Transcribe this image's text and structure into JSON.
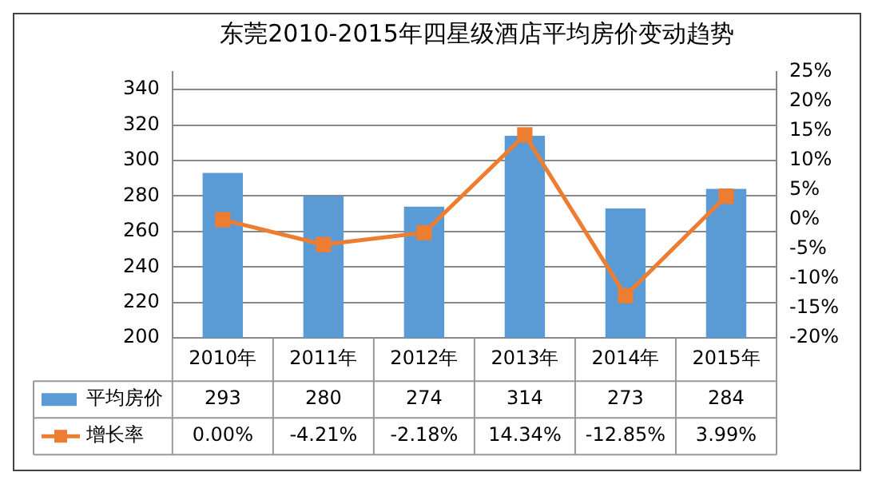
{
  "chart_data": {
    "type": "bar",
    "title": "东莞2010-2015年四星级酒店平均房价变动趋势",
    "categories": [
      "2010年",
      "2011年",
      "2012年",
      "2013年",
      "2014年",
      "2015年"
    ],
    "series": [
      {
        "name": "平均房价",
        "color": "#5b9bd5",
        "values": [
          293,
          280,
          274,
          314,
          273,
          284
        ],
        "value_labels": [
          "293",
          "280",
          "274",
          "314",
          "273",
          "284"
        ]
      },
      {
        "name": "增长率",
        "type": "line",
        "axis": "y2",
        "color": "#ed7d31",
        "values": [
          0.0,
          -4.21,
          -2.18,
          14.34,
          -12.85,
          3.99
        ],
        "value_labels": [
          "0.00%",
          "-4.21%",
          "-2.18%",
          "14.34%",
          "-12.85%",
          "3.99%"
        ]
      }
    ],
    "ylim": [
      200,
      350
    ],
    "yticks": [
      200,
      220,
      240,
      260,
      280,
      300,
      320,
      340
    ],
    "y2lim": [
      -20,
      25
    ],
    "y2ticks": [
      {
        "value": -20,
        "label": "-20%"
      },
      {
        "value": -15,
        "label": "-15%"
      },
      {
        "value": -10,
        "label": "-10%"
      },
      {
        "value": -5,
        "label": "-5%"
      },
      {
        "value": 0,
        "label": "0%"
      },
      {
        "value": 5,
        "label": "5%"
      },
      {
        "value": 10,
        "label": "10%"
      },
      {
        "value": 15,
        "label": "15%"
      },
      {
        "value": 20,
        "label": "20%"
      },
      {
        "value": 25,
        "label": "25%"
      }
    ],
    "grid": "y",
    "legend": "bottom",
    "marker": "square",
    "line_style": "solid"
  }
}
